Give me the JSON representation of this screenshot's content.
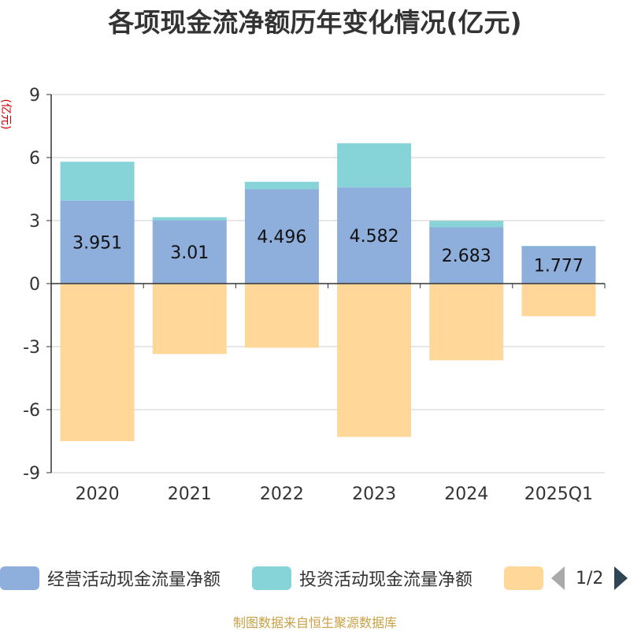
{
  "title": "各项现金流净额历年变化情况(亿元)",
  "source": "制图数据来自恒生聚源数据库",
  "colors": {
    "operating": "#8eaedb",
    "investing": "#86d4d8",
    "financing": "#ffd899",
    "axis": "#333333",
    "grid": "#cccccc",
    "ylabel": "#cc0000"
  },
  "legend": {
    "items": [
      "经营活动现金流量净额",
      "投资活动现金流量净额",
      ""
    ],
    "page": "1/2"
  },
  "chart_data": {
    "type": "bar",
    "stacked": true,
    "ylabel": "(亿元)",
    "ylim": [
      -9,
      9
    ],
    "yticks": [
      9,
      6,
      3,
      0,
      -3,
      -6,
      -9
    ],
    "categories": [
      "2020",
      "2021",
      "2022",
      "2023",
      "2024",
      "2025Q1"
    ],
    "series": [
      {
        "name": "经营活动现金流量净额",
        "values": [
          3.951,
          3.01,
          4.496,
          4.582,
          2.683,
          1.777
        ],
        "labels": [
          "3.951",
          "3.01",
          "4.496",
          "4.582",
          "2.683",
          "1.777"
        ]
      },
      {
        "name": "投资活动现金流量净额",
        "values": [
          1.85,
          0.15,
          0.35,
          2.1,
          0.3,
          0.02
        ]
      },
      {
        "values": [
          -7.5,
          -3.35,
          -3.05,
          -7.3,
          -3.65,
          -1.55
        ]
      }
    ]
  }
}
